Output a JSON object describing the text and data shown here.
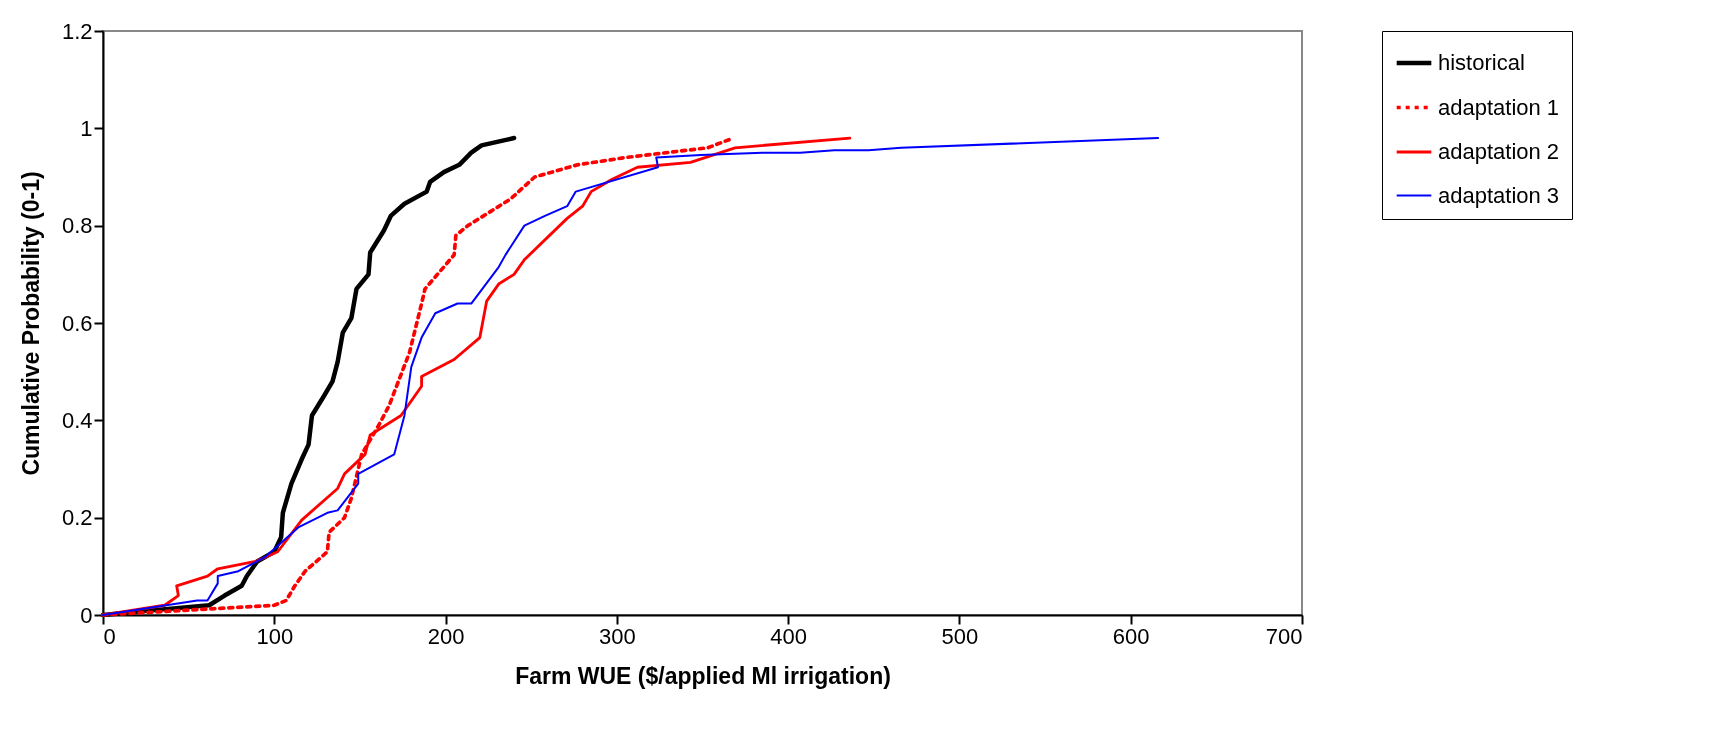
{
  "chart_data": {
    "type": "line",
    "xlabel": "Farm WUE ($/applied Ml irrigation)",
    "ylabel": "Cumulative Probability (0-1)",
    "xlim": [
      0,
      700
    ],
    "xticks": [
      0,
      100,
      200,
      300,
      400,
      500,
      600,
      700
    ],
    "ylim": [
      0,
      1.2
    ],
    "yticks": [
      0,
      0.2,
      0.4,
      0.6,
      0.8,
      1,
      1.2
    ],
    "grid": false,
    "legend": "right",
    "marker": "none",
    "series": [
      {
        "name": "historical",
        "color": "#000000",
        "line_style": "solid",
        "x": [
          0,
          30,
          62,
          71,
          81,
          84,
          90,
          100,
          104,
          105,
          110,
          116,
          120,
          122,
          129,
          134,
          137,
          140,
          145,
          148,
          155,
          156,
          164,
          168,
          176,
          189,
          191,
          199,
          208,
          215,
          221,
          240
        ],
        "values": [
          0,
          0.01,
          0.02,
          0.04,
          0.06,
          0.08,
          0.11,
          0.13,
          0.16,
          0.21,
          0.27,
          0.32,
          0.35,
          0.41,
          0.45,
          0.48,
          0.52,
          0.58,
          0.61,
          0.67,
          0.7,
          0.745,
          0.79,
          0.82,
          0.845,
          0.87,
          0.89,
          0.91,
          0.925,
          0.95,
          0.965,
          0.98
        ]
      },
      {
        "name": "adaptation 1",
        "color": "#ff0000",
        "line_style": "dotted",
        "x": [
          0,
          50,
          100,
          107,
          112,
          118,
          131,
          132,
          141,
          145,
          151,
          161,
          167,
          179,
          186,
          188,
          205,
          206,
          213,
          238,
          252,
          277,
          305,
          353,
          368
        ],
        "values": [
          0,
          0.01,
          0.02,
          0.03,
          0.06,
          0.09,
          0.13,
          0.17,
          0.2,
          0.24,
          0.33,
          0.39,
          0.43,
          0.54,
          0.64,
          0.67,
          0.74,
          0.78,
          0.8,
          0.855,
          0.9,
          0.925,
          0.94,
          0.96,
          0.98
        ]
      },
      {
        "name": "adaptation 2",
        "color": "#ff0000",
        "line_style": "solid",
        "x": [
          0,
          36,
          44,
          43,
          61,
          67,
          89,
          102,
          116,
          137,
          141,
          153,
          156,
          174,
          186,
          186,
          205,
          220,
          224,
          231,
          240,
          246,
          271,
          280,
          285,
          297,
          312,
          343,
          369,
          436
        ],
        "values": [
          0,
          0.02,
          0.04,
          0.06,
          0.08,
          0.095,
          0.11,
          0.13,
          0.195,
          0.26,
          0.29,
          0.33,
          0.37,
          0.41,
          0.47,
          0.49,
          0.525,
          0.57,
          0.645,
          0.68,
          0.7,
          0.73,
          0.815,
          0.84,
          0.87,
          0.895,
          0.92,
          0.93,
          0.96,
          0.98
        ]
      },
      {
        "name": "adaptation 3",
        "color": "#0000ff",
        "line_style": "solid",
        "x": [
          0,
          55,
          61,
          67,
          67,
          79,
          95,
          114,
          131,
          137,
          149,
          149,
          170,
          176,
          180,
          186,
          194,
          207,
          215,
          231,
          235,
          246,
          258,
          271,
          276,
          324,
          323,
          349,
          385,
          407,
          427,
          447,
          466,
          616
        ],
        "values": [
          0,
          0.03,
          0.03,
          0.065,
          0.08,
          0.09,
          0.12,
          0.18,
          0.21,
          0.215,
          0.27,
          0.29,
          0.33,
          0.41,
          0.51,
          0.57,
          0.62,
          0.64,
          0.64,
          0.715,
          0.74,
          0.8,
          0.82,
          0.84,
          0.87,
          0.92,
          0.94,
          0.945,
          0.95,
          0.95,
          0.955,
          0.955,
          0.96,
          0.98
        ]
      }
    ]
  }
}
